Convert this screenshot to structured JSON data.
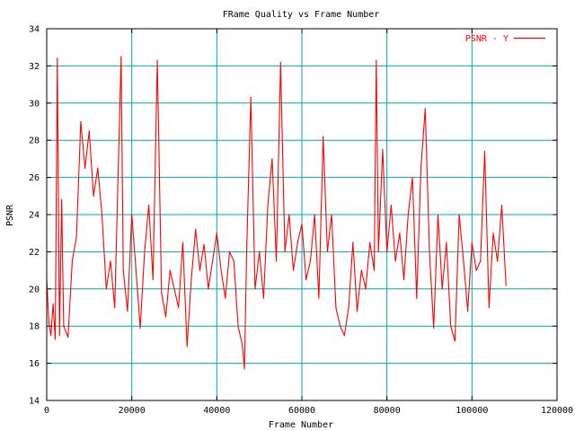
{
  "chart_data": {
    "type": "line",
    "title": "FRame Quality vs Frame Number",
    "xlabel": "Frame Number",
    "ylabel": "PSNR",
    "xlim": [
      0,
      120000
    ],
    "ylim": [
      14,
      34
    ],
    "x_ticks": [
      "0",
      "20000",
      "40000",
      "60000",
      "80000",
      "100000",
      "120000"
    ],
    "y_ticks": [
      "14",
      "16",
      "18",
      "20",
      "22",
      "24",
      "26",
      "28",
      "30",
      "32",
      "34"
    ],
    "grid": true,
    "legend_position": "top-right",
    "series": [
      {
        "name": "PSNR - Y",
        "color": "#ff0000",
        "x": [
          0,
          500,
          1000,
          1500,
          2000,
          2500,
          3000,
          3500,
          4000,
          5000,
          6000,
          7000,
          8000,
          9000,
          10000,
          11000,
          12000,
          13000,
          14000,
          15000,
          16000,
          17000,
          17500,
          18000,
          19000,
          20000,
          21000,
          22000,
          23000,
          24000,
          25000,
          26000,
          27000,
          28000,
          29000,
          30000,
          31000,
          32000,
          33000,
          34000,
          35000,
          36000,
          37000,
          38000,
          39000,
          40000,
          41000,
          42000,
          43000,
          44000,
          45000,
          46000,
          46500,
          47000,
          48000,
          49000,
          50000,
          51000,
          52000,
          53000,
          54000,
          55000,
          56000,
          57000,
          58000,
          59000,
          60000,
          61000,
          62000,
          63000,
          64000,
          65000,
          66000,
          67000,
          68000,
          69000,
          70000,
          71000,
          72000,
          73000,
          74000,
          75000,
          76000,
          77000,
          77500,
          78000,
          79000,
          80000,
          81000,
          82000,
          83000,
          84000,
          85000,
          86000,
          87000,
          88000,
          89000,
          90000,
          91000,
          92000,
          93000,
          94000,
          95000,
          96000,
          97000,
          98000,
          99000,
          100000,
          101000,
          102000,
          103000,
          104000,
          105000,
          106000,
          107000,
          108000
        ],
        "values": [
          20.5,
          18.2,
          17.5,
          19.2,
          17.3,
          32.4,
          17.5,
          24.8,
          18.0,
          17.4,
          21.5,
          22.8,
          29.0,
          26.5,
          28.5,
          25.0,
          26.5,
          24.0,
          20.0,
          21.5,
          19.0,
          28.1,
          32.5,
          21.0,
          18.8,
          24.0,
          21.0,
          17.9,
          22.0,
          24.5,
          20.5,
          32.3,
          19.8,
          18.5,
          21.0,
          20.0,
          19.0,
          22.5,
          16.9,
          20.5,
          23.2,
          21.0,
          22.4,
          20.0,
          21.5,
          23.0,
          21.0,
          19.5,
          22.0,
          21.5,
          18.0,
          17.0,
          15.7,
          22.0,
          30.3,
          20.0,
          22.0,
          19.5,
          24.5,
          27.0,
          21.5,
          32.2,
          22.0,
          24.0,
          21.0,
          22.5,
          23.5,
          20.5,
          21.5,
          24.0,
          19.5,
          28.2,
          22.0,
          24.0,
          19.0,
          18.0,
          17.5,
          19.0,
          22.5,
          18.8,
          21.0,
          20.0,
          22.5,
          21.0,
          32.3,
          22.0,
          27.5,
          22.0,
          24.5,
          21.5,
          23.0,
          20.5,
          24.0,
          26.0,
          19.5,
          26.5,
          29.7,
          22.0,
          17.9,
          24.0,
          20.0,
          22.5,
          18.0,
          17.2,
          24.0,
          21.5,
          18.8,
          22.5,
          21.0,
          21.5,
          27.4,
          19.0,
          23.0,
          21.5,
          24.5,
          20.2
        ]
      }
    ]
  }
}
